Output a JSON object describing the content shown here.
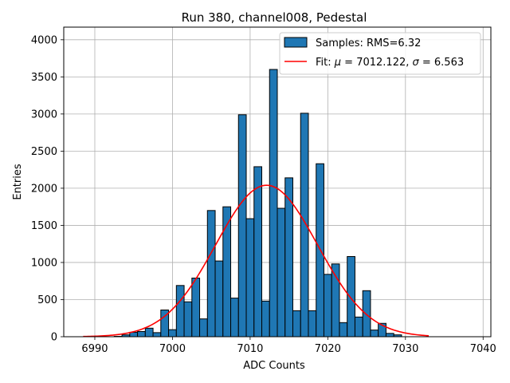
{
  "chart_data": {
    "type": "bar",
    "title": "Run 380, channel008, Pedestal",
    "xlabel": "ADC Counts",
    "ylabel": "Entries",
    "xlim": [
      6986,
      7041
    ],
    "ylim": [
      0,
      4170
    ],
    "x_ticks": [
      6990,
      7000,
      7010,
      7020,
      7030,
      7040
    ],
    "y_ticks": [
      0,
      500,
      1000,
      1500,
      2000,
      2500,
      3000,
      3500,
      4000
    ],
    "grid": true,
    "legend_position": "top-right",
    "bin_width": 1,
    "series": [
      {
        "name": "Samples: RMS=6.32",
        "kind": "histogram",
        "color": "#1f77b4",
        "edge_color": "#000000",
        "bins": [
          6993,
          6994,
          6995,
          6996,
          6997,
          6998,
          6999,
          7000,
          7001,
          7002,
          7003,
          7004,
          7005,
          7006,
          7007,
          7008,
          7009,
          7010,
          7011,
          7012,
          7013,
          7014,
          7015,
          7016,
          7017,
          7018,
          7019,
          7020,
          7021,
          7022,
          7023,
          7024,
          7025,
          7026,
          7027,
          7028,
          7029
        ],
        "values": [
          5,
          25,
          60,
          70,
          115,
          55,
          360,
          95,
          690,
          470,
          790,
          240,
          1700,
          1020,
          1750,
          520,
          2990,
          1590,
          2290,
          480,
          3600,
          1730,
          2140,
          350,
          3010,
          350,
          2330,
          840,
          980,
          190,
          1080,
          265,
          620,
          90,
          180,
          45,
          25
        ]
      },
      {
        "name_parts": [
          "Fit: ",
          "μ",
          " = 7012.122, ",
          "σ",
          " = 6.563"
        ],
        "kind": "line",
        "color": "#ff0000",
        "mu": 7012.122,
        "sigma": 6.563,
        "amplitude": 2040,
        "x_range": [
          6988.5,
          7033
        ]
      }
    ]
  }
}
